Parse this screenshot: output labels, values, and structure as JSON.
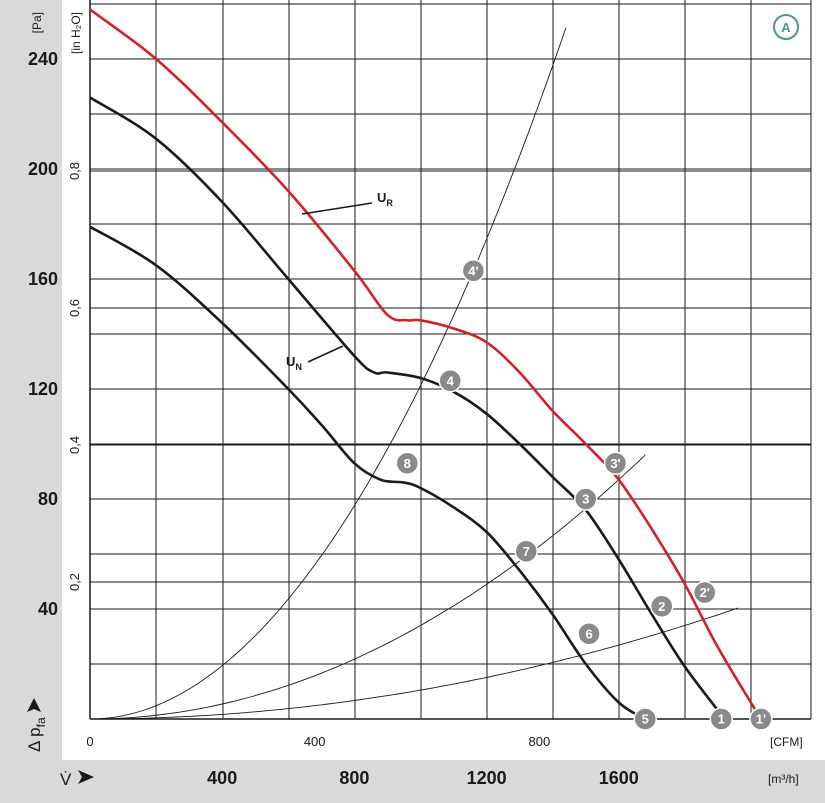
{
  "badge": "A",
  "axes": {
    "y_pa_unit": "[Pa]",
    "y_inh2o_unit": "[in H₂O]",
    "y_label": "Δ p",
    "y_label_sub": "fa",
    "x_cfm_unit": "[CFM]",
    "x_m3h_unit": "[m³/h]",
    "x_label": "V̇"
  },
  "chart_data": {
    "type": "line",
    "xlabel": "V̇",
    "ylabel": "Δ p fa",
    "x_primary": {
      "unit": "m³/h",
      "ticks": [
        400,
        800,
        1200,
        1600
      ],
      "range": [
        0,
        2000
      ]
    },
    "x_secondary": {
      "unit": "CFM",
      "ticks": [
        0,
        400,
        800
      ],
      "range": [
        0,
        1177
      ]
    },
    "y_primary": {
      "unit": "Pa",
      "ticks": [
        40,
        80,
        120,
        160,
        200,
        240
      ],
      "range": [
        0,
        260
      ]
    },
    "y_secondary": {
      "unit": "in H₂O",
      "ticks": [
        "0,2",
        "0,4",
        "0,6",
        "0,8"
      ],
      "values": [
        0.2,
        0.4,
        0.6,
        0.8
      ]
    },
    "grid": true,
    "series": [
      {
        "name": "U_R",
        "color": "#d42027",
        "x": [
          0,
          200,
          400,
          600,
          800,
          900,
          960,
          1000,
          1100,
          1200,
          1300,
          1400,
          1500,
          1600,
          1700,
          1800,
          1900,
          2030
        ],
        "y": [
          258,
          240,
          217,
          192,
          163,
          147,
          145,
          145,
          142,
          137,
          126,
          112,
          100,
          87,
          69,
          49,
          26,
          0
        ]
      },
      {
        "name": "U_N",
        "color": "#1a1a1a",
        "x": [
          0,
          200,
          400,
          600,
          800,
          860,
          900,
          1000,
          1100,
          1200,
          1300,
          1400,
          1500,
          1600,
          1700,
          1800,
          1920
        ],
        "y": [
          226,
          211,
          188,
          160,
          132,
          126,
          126,
          124,
          119,
          111,
          100,
          88,
          76,
          58,
          38,
          19,
          0
        ]
      },
      {
        "name": "",
        "color": "#1a1a1a",
        "x": [
          0,
          200,
          400,
          600,
          700,
          800,
          880,
          950,
          1000,
          1100,
          1200,
          1300,
          1400,
          1500,
          1600,
          1680
        ],
        "y": [
          179,
          165,
          144,
          120,
          107,
          93,
          87,
          86,
          84,
          77,
          68,
          54,
          38,
          20,
          6,
          0
        ]
      }
    ],
    "system_curves": [
      {
        "k": 0.0001212,
        "x_max": 1450
      },
      {
        "k": 3.4e-05,
        "x_max": 1690
      },
      {
        "k": 1.05e-05,
        "x_max": 1960
      }
    ],
    "points": [
      {
        "label": "1'",
        "x": 2030,
        "y": 0
      },
      {
        "label": "2'",
        "x": 1860,
        "y": 46
      },
      {
        "label": "3'",
        "x": 1590,
        "y": 93
      },
      {
        "label": "4'",
        "x": 1160,
        "y": 163
      },
      {
        "label": "1",
        "x": 1910,
        "y": 0
      },
      {
        "label": "2",
        "x": 1730,
        "y": 41
      },
      {
        "label": "3",
        "x": 1500,
        "y": 80
      },
      {
        "label": "4",
        "x": 1090,
        "y": 123
      },
      {
        "label": "5",
        "x": 1680,
        "y": 0
      },
      {
        "label": "6",
        "x": 1510,
        "y": 31
      },
      {
        "label": "7",
        "x": 1320,
        "y": 61
      },
      {
        "label": "8",
        "x": 960,
        "y": 93
      }
    ],
    "annotations": [
      "U_R",
      "U_N"
    ]
  }
}
